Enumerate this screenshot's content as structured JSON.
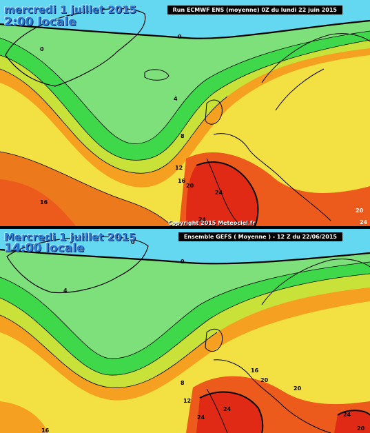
{
  "top_panel": {
    "date": "mercredi 1 juillet 2015",
    "time": "2:00 locale",
    "run_info": "Run ECMWF ENS (moyenne) 0Z du lundi 22 juin 2015",
    "copyright": "Copyright 2015 Meteociel.fr",
    "contour_labels": [
      "0",
      "0",
      "4",
      "8",
      "12",
      "16",
      "20",
      "24",
      "16",
      "20",
      "24",
      "24"
    ]
  },
  "bottom_panel": {
    "date": "Mercredi 1 juillet 2015",
    "time": "14:00 locale",
    "run_info": "Ensemble GEFS ( Moyenne ) - 12 Z du 22/06/2015",
    "contour_labels": [
      "0",
      "0",
      "4",
      "8",
      "12",
      "16",
      "20",
      "24",
      "24",
      "20",
      "24",
      "20",
      "16"
    ]
  },
  "colors": {
    "cold": "#63d8f0",
    "cool_green": "#7ee07a",
    "green": "#3ed84a",
    "yellow_green": "#c8e23a",
    "yellow": "#f3e042",
    "orange": "#f5a020",
    "red_orange": "#ec5a1c",
    "red": "#e02a16"
  }
}
